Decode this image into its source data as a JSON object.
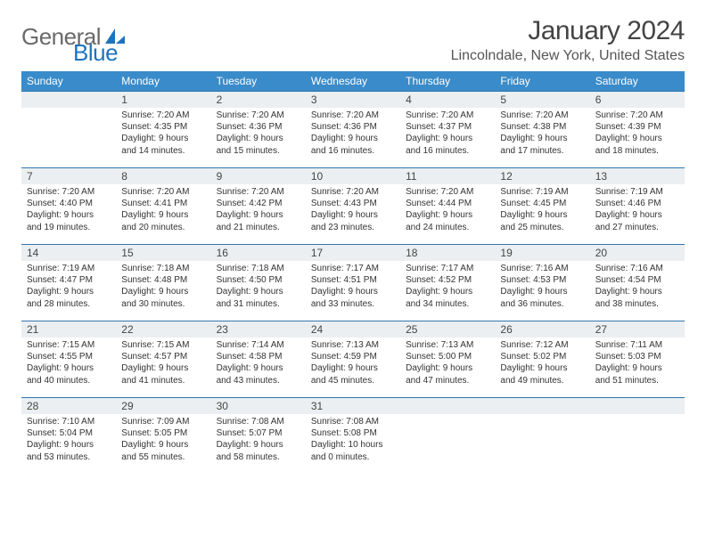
{
  "brand": {
    "part1": "General",
    "part2": "Blue"
  },
  "title": "January 2024",
  "location": "Lincolndale, New York, United States",
  "styling": {
    "page_bg": "#ffffff",
    "header_bg": "#3a8bc9",
    "header_text": "#ffffff",
    "daynum_bg": "#eceff1",
    "daynum_text": "#444444",
    "row_border": "#3176ad",
    "body_text": "#333333",
    "logo_gray": "#6a6a6a",
    "logo_blue": "#1e73be",
    "title_color": "#444444",
    "location_color": "#555555",
    "month_title_fontsize": 30,
    "location_fontsize": 16,
    "header_fontsize": 12,
    "daynum_fontsize": 12,
    "cell_fontsize": 10
  },
  "weekdays": [
    "Sunday",
    "Monday",
    "Tuesday",
    "Wednesday",
    "Thursday",
    "Friday",
    "Saturday"
  ],
  "weeks": [
    [
      null,
      {
        "n": "1",
        "sr": "Sunrise: 7:20 AM",
        "ss": "Sunset: 4:35 PM",
        "dl1": "Daylight: 9 hours",
        "dl2": "and 14 minutes."
      },
      {
        "n": "2",
        "sr": "Sunrise: 7:20 AM",
        "ss": "Sunset: 4:36 PM",
        "dl1": "Daylight: 9 hours",
        "dl2": "and 15 minutes."
      },
      {
        "n": "3",
        "sr": "Sunrise: 7:20 AM",
        "ss": "Sunset: 4:36 PM",
        "dl1": "Daylight: 9 hours",
        "dl2": "and 16 minutes."
      },
      {
        "n": "4",
        "sr": "Sunrise: 7:20 AM",
        "ss": "Sunset: 4:37 PM",
        "dl1": "Daylight: 9 hours",
        "dl2": "and 16 minutes."
      },
      {
        "n": "5",
        "sr": "Sunrise: 7:20 AM",
        "ss": "Sunset: 4:38 PM",
        "dl1": "Daylight: 9 hours",
        "dl2": "and 17 minutes."
      },
      {
        "n": "6",
        "sr": "Sunrise: 7:20 AM",
        "ss": "Sunset: 4:39 PM",
        "dl1": "Daylight: 9 hours",
        "dl2": "and 18 minutes."
      }
    ],
    [
      {
        "n": "7",
        "sr": "Sunrise: 7:20 AM",
        "ss": "Sunset: 4:40 PM",
        "dl1": "Daylight: 9 hours",
        "dl2": "and 19 minutes."
      },
      {
        "n": "8",
        "sr": "Sunrise: 7:20 AM",
        "ss": "Sunset: 4:41 PM",
        "dl1": "Daylight: 9 hours",
        "dl2": "and 20 minutes."
      },
      {
        "n": "9",
        "sr": "Sunrise: 7:20 AM",
        "ss": "Sunset: 4:42 PM",
        "dl1": "Daylight: 9 hours",
        "dl2": "and 21 minutes."
      },
      {
        "n": "10",
        "sr": "Sunrise: 7:20 AM",
        "ss": "Sunset: 4:43 PM",
        "dl1": "Daylight: 9 hours",
        "dl2": "and 23 minutes."
      },
      {
        "n": "11",
        "sr": "Sunrise: 7:20 AM",
        "ss": "Sunset: 4:44 PM",
        "dl1": "Daylight: 9 hours",
        "dl2": "and 24 minutes."
      },
      {
        "n": "12",
        "sr": "Sunrise: 7:19 AM",
        "ss": "Sunset: 4:45 PM",
        "dl1": "Daylight: 9 hours",
        "dl2": "and 25 minutes."
      },
      {
        "n": "13",
        "sr": "Sunrise: 7:19 AM",
        "ss": "Sunset: 4:46 PM",
        "dl1": "Daylight: 9 hours",
        "dl2": "and 27 minutes."
      }
    ],
    [
      {
        "n": "14",
        "sr": "Sunrise: 7:19 AM",
        "ss": "Sunset: 4:47 PM",
        "dl1": "Daylight: 9 hours",
        "dl2": "and 28 minutes."
      },
      {
        "n": "15",
        "sr": "Sunrise: 7:18 AM",
        "ss": "Sunset: 4:48 PM",
        "dl1": "Daylight: 9 hours",
        "dl2": "and 30 minutes."
      },
      {
        "n": "16",
        "sr": "Sunrise: 7:18 AM",
        "ss": "Sunset: 4:50 PM",
        "dl1": "Daylight: 9 hours",
        "dl2": "and 31 minutes."
      },
      {
        "n": "17",
        "sr": "Sunrise: 7:17 AM",
        "ss": "Sunset: 4:51 PM",
        "dl1": "Daylight: 9 hours",
        "dl2": "and 33 minutes."
      },
      {
        "n": "18",
        "sr": "Sunrise: 7:17 AM",
        "ss": "Sunset: 4:52 PM",
        "dl1": "Daylight: 9 hours",
        "dl2": "and 34 minutes."
      },
      {
        "n": "19",
        "sr": "Sunrise: 7:16 AM",
        "ss": "Sunset: 4:53 PM",
        "dl1": "Daylight: 9 hours",
        "dl2": "and 36 minutes."
      },
      {
        "n": "20",
        "sr": "Sunrise: 7:16 AM",
        "ss": "Sunset: 4:54 PM",
        "dl1": "Daylight: 9 hours",
        "dl2": "and 38 minutes."
      }
    ],
    [
      {
        "n": "21",
        "sr": "Sunrise: 7:15 AM",
        "ss": "Sunset: 4:55 PM",
        "dl1": "Daylight: 9 hours",
        "dl2": "and 40 minutes."
      },
      {
        "n": "22",
        "sr": "Sunrise: 7:15 AM",
        "ss": "Sunset: 4:57 PM",
        "dl1": "Daylight: 9 hours",
        "dl2": "and 41 minutes."
      },
      {
        "n": "23",
        "sr": "Sunrise: 7:14 AM",
        "ss": "Sunset: 4:58 PM",
        "dl1": "Daylight: 9 hours",
        "dl2": "and 43 minutes."
      },
      {
        "n": "24",
        "sr": "Sunrise: 7:13 AM",
        "ss": "Sunset: 4:59 PM",
        "dl1": "Daylight: 9 hours",
        "dl2": "and 45 minutes."
      },
      {
        "n": "25",
        "sr": "Sunrise: 7:13 AM",
        "ss": "Sunset: 5:00 PM",
        "dl1": "Daylight: 9 hours",
        "dl2": "and 47 minutes."
      },
      {
        "n": "26",
        "sr": "Sunrise: 7:12 AM",
        "ss": "Sunset: 5:02 PM",
        "dl1": "Daylight: 9 hours",
        "dl2": "and 49 minutes."
      },
      {
        "n": "27",
        "sr": "Sunrise: 7:11 AM",
        "ss": "Sunset: 5:03 PM",
        "dl1": "Daylight: 9 hours",
        "dl2": "and 51 minutes."
      }
    ],
    [
      {
        "n": "28",
        "sr": "Sunrise: 7:10 AM",
        "ss": "Sunset: 5:04 PM",
        "dl1": "Daylight: 9 hours",
        "dl2": "and 53 minutes."
      },
      {
        "n": "29",
        "sr": "Sunrise: 7:09 AM",
        "ss": "Sunset: 5:05 PM",
        "dl1": "Daylight: 9 hours",
        "dl2": "and 55 minutes."
      },
      {
        "n": "30",
        "sr": "Sunrise: 7:08 AM",
        "ss": "Sunset: 5:07 PM",
        "dl1": "Daylight: 9 hours",
        "dl2": "and 58 minutes."
      },
      {
        "n": "31",
        "sr": "Sunrise: 7:08 AM",
        "ss": "Sunset: 5:08 PM",
        "dl1": "Daylight: 10 hours",
        "dl2": "and 0 minutes."
      },
      null,
      null,
      null
    ]
  ]
}
